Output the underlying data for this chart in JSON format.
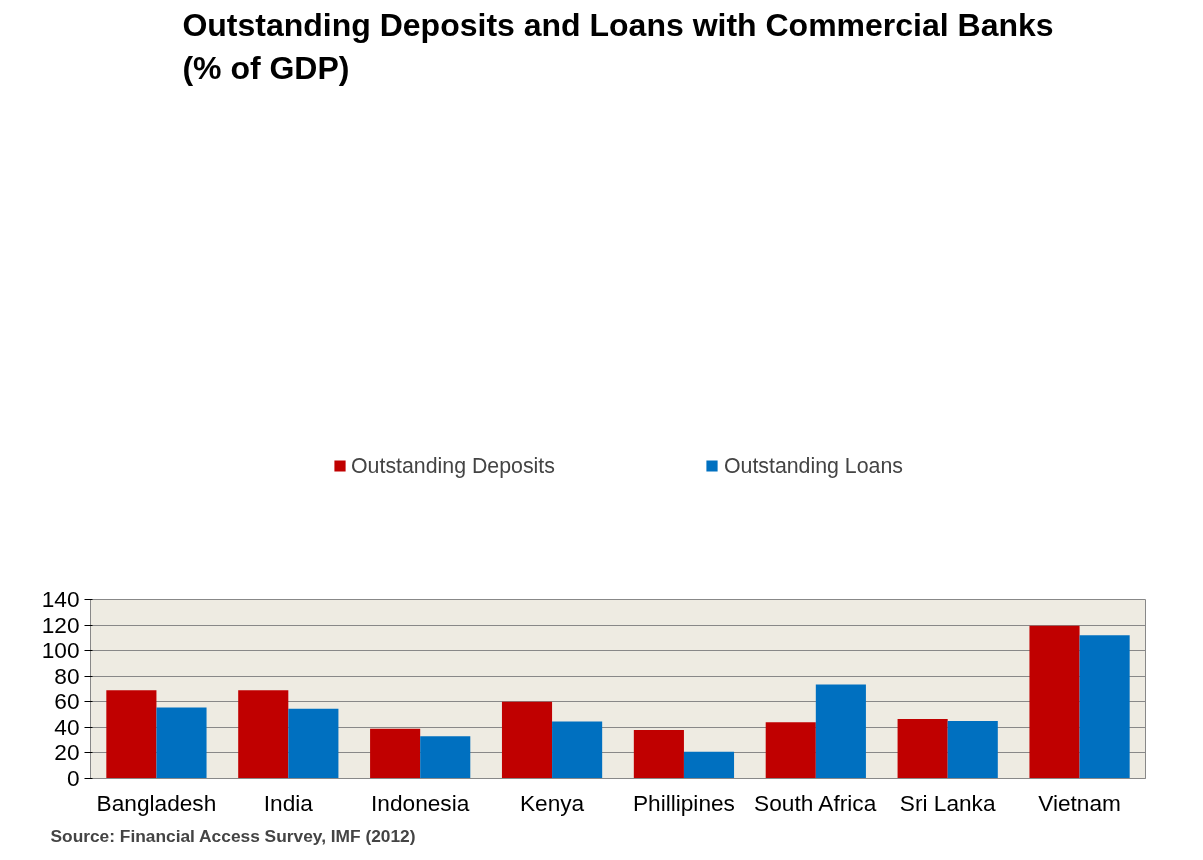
{
  "chart_data": {
    "type": "bar",
    "title": "Outstanding Deposits and Loans with Commercial Banks\n(% of GDP)",
    "categories": [
      "Bangladesh",
      "India",
      "Indonesia",
      "Kenya",
      "Phillipines",
      "South Africa",
      "Sri Lanka",
      "Vietnam"
    ],
    "series": [
      {
        "name": "Outstanding Deposits",
        "color": "#c00000",
        "values": [
          69,
          69,
          39,
          60,
          38,
          44,
          46.5,
          119.5
        ]
      },
      {
        "name": "Outstanding Loans",
        "color": "#0070c0",
        "values": [
          55.5,
          54.5,
          33,
          44.5,
          21,
          73.5,
          45,
          112
        ]
      }
    ],
    "ylim": [
      0,
      140
    ],
    "yticks": [
      0,
      20,
      40,
      60,
      80,
      100,
      120,
      140
    ],
    "grid": "y",
    "legend": "top",
    "annotations": [
      "Source: Financial Access Survey, IMF (2012)"
    ]
  }
}
